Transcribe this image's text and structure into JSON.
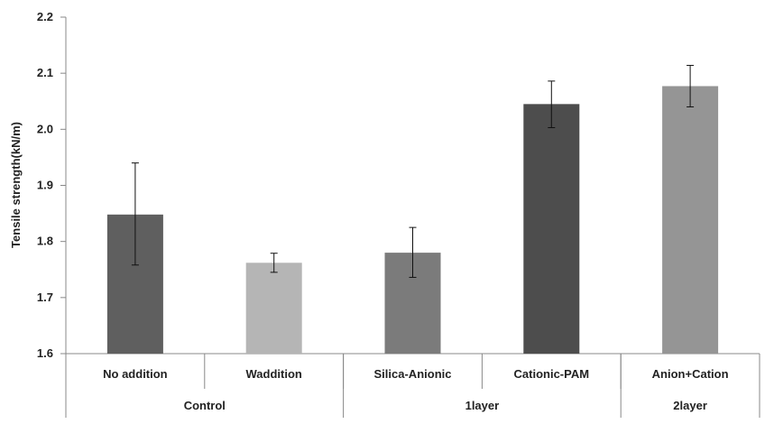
{
  "chart_data": {
    "type": "bar",
    "title": "",
    "xlabel": "",
    "ylabel": "Tensile strength(kN/m)",
    "ylim": [
      1.6,
      2.2
    ],
    "yticks": [
      "1.6",
      "1.7",
      "1.8",
      "1.9",
      "2.0",
      "2.1",
      "2.2"
    ],
    "ytick_values": [
      1.6,
      1.7,
      1.8,
      1.9,
      2.0,
      2.1,
      2.2
    ],
    "grid": false,
    "categories": [
      "No addition",
      "Waddition",
      "Silica-Anionic",
      "Cationic-PAM",
      "Anion+Cation"
    ],
    "values": [
      1.848,
      1.762,
      1.78,
      2.045,
      2.077
    ],
    "error_low": [
      1.758,
      1.745,
      1.736,
      2.003,
      2.04
    ],
    "error_high": [
      1.94,
      1.779,
      1.825,
      2.086,
      2.114
    ],
    "colors": [
      "#5f5f5f",
      "#b5b5b5",
      "#7b7b7b",
      "#4d4d4d",
      "#959595"
    ],
    "groups": [
      {
        "label": "Control",
        "categories": [
          "No addition",
          "Waddition"
        ]
      },
      {
        "label": "1layer",
        "categories": [
          "Silica-Anionic",
          "Cationic-PAM"
        ]
      },
      {
        "label": "2layer",
        "categories": [
          "Anion+Cation"
        ]
      }
    ]
  }
}
